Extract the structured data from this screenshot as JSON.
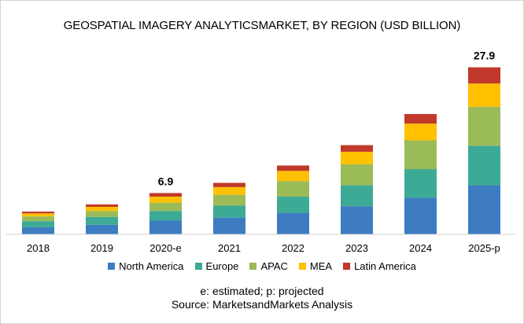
{
  "chart_data": {
    "type": "bar",
    "stacked": true,
    "title": "GEOSPATIAL IMAGERY ANALYTICSMARKET, BY REGION (USD BILLION)",
    "categories": [
      "2018",
      "2019",
      "2020-e",
      "2021",
      "2022",
      "2023",
      "2024",
      "2025-p"
    ],
    "series": [
      {
        "name": "North America",
        "color": "#3D7CC0",
        "values": [
          1.2,
          1.6,
          2.3,
          2.8,
          3.6,
          4.7,
          6.1,
          8.2
        ]
      },
      {
        "name": "Europe",
        "color": "#3DAA96",
        "values": [
          1.0,
          1.3,
          1.6,
          2.0,
          2.7,
          3.5,
          4.8,
          6.6
        ]
      },
      {
        "name": "APAC",
        "color": "#9BBB59",
        "values": [
          0.8,
          1.0,
          1.4,
          1.8,
          2.6,
          3.5,
          4.8,
          6.5
        ]
      },
      {
        "name": "MEA",
        "color": "#FFC000",
        "values": [
          0.5,
          0.7,
          1.0,
          1.3,
          1.7,
          2.1,
          2.8,
          3.9
        ]
      },
      {
        "name": "Latin America",
        "color": "#C0392B",
        "values": [
          0.3,
          0.4,
          0.6,
          0.7,
          0.9,
          1.1,
          1.6,
          2.7
        ]
      }
    ],
    "data_labels": [
      {
        "category": "2020-e",
        "text": "6.9"
      },
      {
        "category": "2025-p",
        "text": "27.9"
      }
    ],
    "ylim": [
      0,
      31
    ],
    "y_axis_visible": false,
    "grid": false,
    "legend_position": "bottom"
  },
  "notes": {
    "line1": "e: estimated; p: projected",
    "line2": "Source: MarketsandMarkets Analysis"
  }
}
